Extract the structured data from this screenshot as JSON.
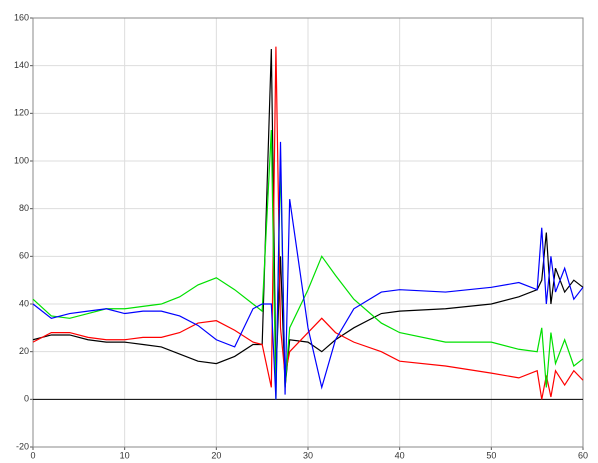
{
  "chart_data": {
    "type": "line",
    "x": [
      0,
      2,
      4,
      6,
      8,
      10,
      12,
      14,
      16,
      18,
      20,
      22,
      24,
      25,
      26,
      26.5,
      27,
      27.5,
      28,
      30,
      31.5,
      33,
      35,
      38,
      40,
      45,
      50,
      53,
      55,
      55.5,
      56,
      56.5,
      57,
      58,
      59,
      60
    ],
    "series": [
      {
        "color": "#000000",
        "values": [
          25,
          27,
          27,
          25,
          24,
          24,
          23,
          22,
          19,
          16,
          15,
          18,
          23,
          23,
          147,
          10,
          60,
          5,
          25,
          24,
          20,
          25,
          30,
          36,
          37,
          38,
          40,
          43,
          46,
          50,
          70,
          40,
          55,
          45,
          50,
          47
        ]
      },
      {
        "color": "#ff0000",
        "values": [
          24,
          28,
          28,
          26,
          25,
          25,
          26,
          26,
          28,
          32,
          33,
          29,
          24,
          23,
          5,
          148,
          30,
          10,
          20,
          28,
          34,
          28,
          24,
          20,
          16,
          14,
          11,
          9,
          12,
          0,
          10,
          1,
          12,
          6,
          12,
          8
        ]
      },
      {
        "color": "#00e000",
        "values": [
          42,
          35,
          34,
          36,
          38,
          38,
          39,
          40,
          43,
          48,
          51,
          46,
          40,
          37,
          113,
          0,
          100,
          5,
          30,
          46,
          60,
          52,
          42,
          32,
          28,
          24,
          24,
          21,
          20,
          30,
          5,
          28,
          15,
          25,
          14,
          17
        ]
      },
      {
        "color": "#0000ff",
        "values": [
          40,
          34,
          36,
          37,
          38,
          36,
          37,
          37,
          35,
          31,
          25,
          22,
          38,
          40,
          40,
          0,
          108,
          2,
          84,
          30,
          5,
          25,
          38,
          45,
          46,
          45,
          47,
          49,
          46,
          72,
          40,
          60,
          45,
          55,
          42,
          47
        ]
      }
    ],
    "xlim": [
      0,
      60
    ],
    "xticks": [
      0,
      10,
      20,
      30,
      40,
      50,
      60
    ],
    "ylim": [
      -20,
      160
    ],
    "yticks": [
      -20,
      0,
      20,
      40,
      60,
      80,
      100,
      120,
      140,
      160
    ],
    "grid": true
  }
}
